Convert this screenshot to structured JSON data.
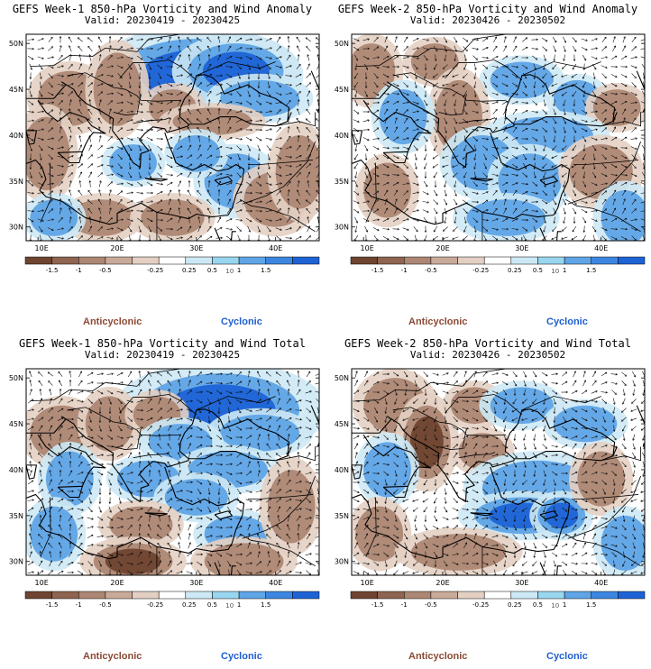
{
  "colors": {
    "scale": [
      "#6f4430",
      "#8f6450",
      "#ad8774",
      "#c9aa99",
      "#e4d0c3",
      "#ffffff",
      "#cde9f5",
      "#99d6f0",
      "#5fa4e6",
      "#3c86e0",
      "#1e63d6"
    ],
    "anticyclonic": "#8b4a34",
    "cyclonic": "#1f5fd1"
  },
  "legend_ticks": [
    "-1.5",
    "-1",
    "-0.5",
    "-0.25",
    "0.25",
    "0.5",
    "1",
    "1.5"
  ],
  "legend_scale_note": "10",
  "lat_labels": [
    "50N",
    "45N",
    "40N",
    "35N",
    "30N"
  ],
  "lon_labels": [
    "10E",
    "20E",
    "30E",
    "40E"
  ],
  "panels": [
    {
      "title": "GEFS Week-1 850-hPa Vorticity and Wind Anomaly",
      "valid": "Valid: 20230419 - 20230425",
      "anticyclonic": "Anticyclonic",
      "cyclonic": "Cyclonic"
    },
    {
      "title": "GEFS Week-2 850-hPa Vorticity and Wind Anomaly",
      "valid": "Valid: 20230426 - 20230502",
      "anticyclonic": "Anticyclonic",
      "cyclonic": "Cyclonic"
    },
    {
      "title": "GEFS Week-1 850-hPa Vorticity and Wind Total",
      "valid": "Valid: 20230419 - 20230425",
      "anticyclonic": "Anticyclonic",
      "cyclonic": "Cyclonic"
    },
    {
      "title": "GEFS Week-2 850-hPa Vorticity and Wind Total",
      "valid": "Valid: 20230426 - 20230502",
      "anticyclonic": "Anticyclonic",
      "cyclonic": "Cyclonic"
    }
  ]
}
